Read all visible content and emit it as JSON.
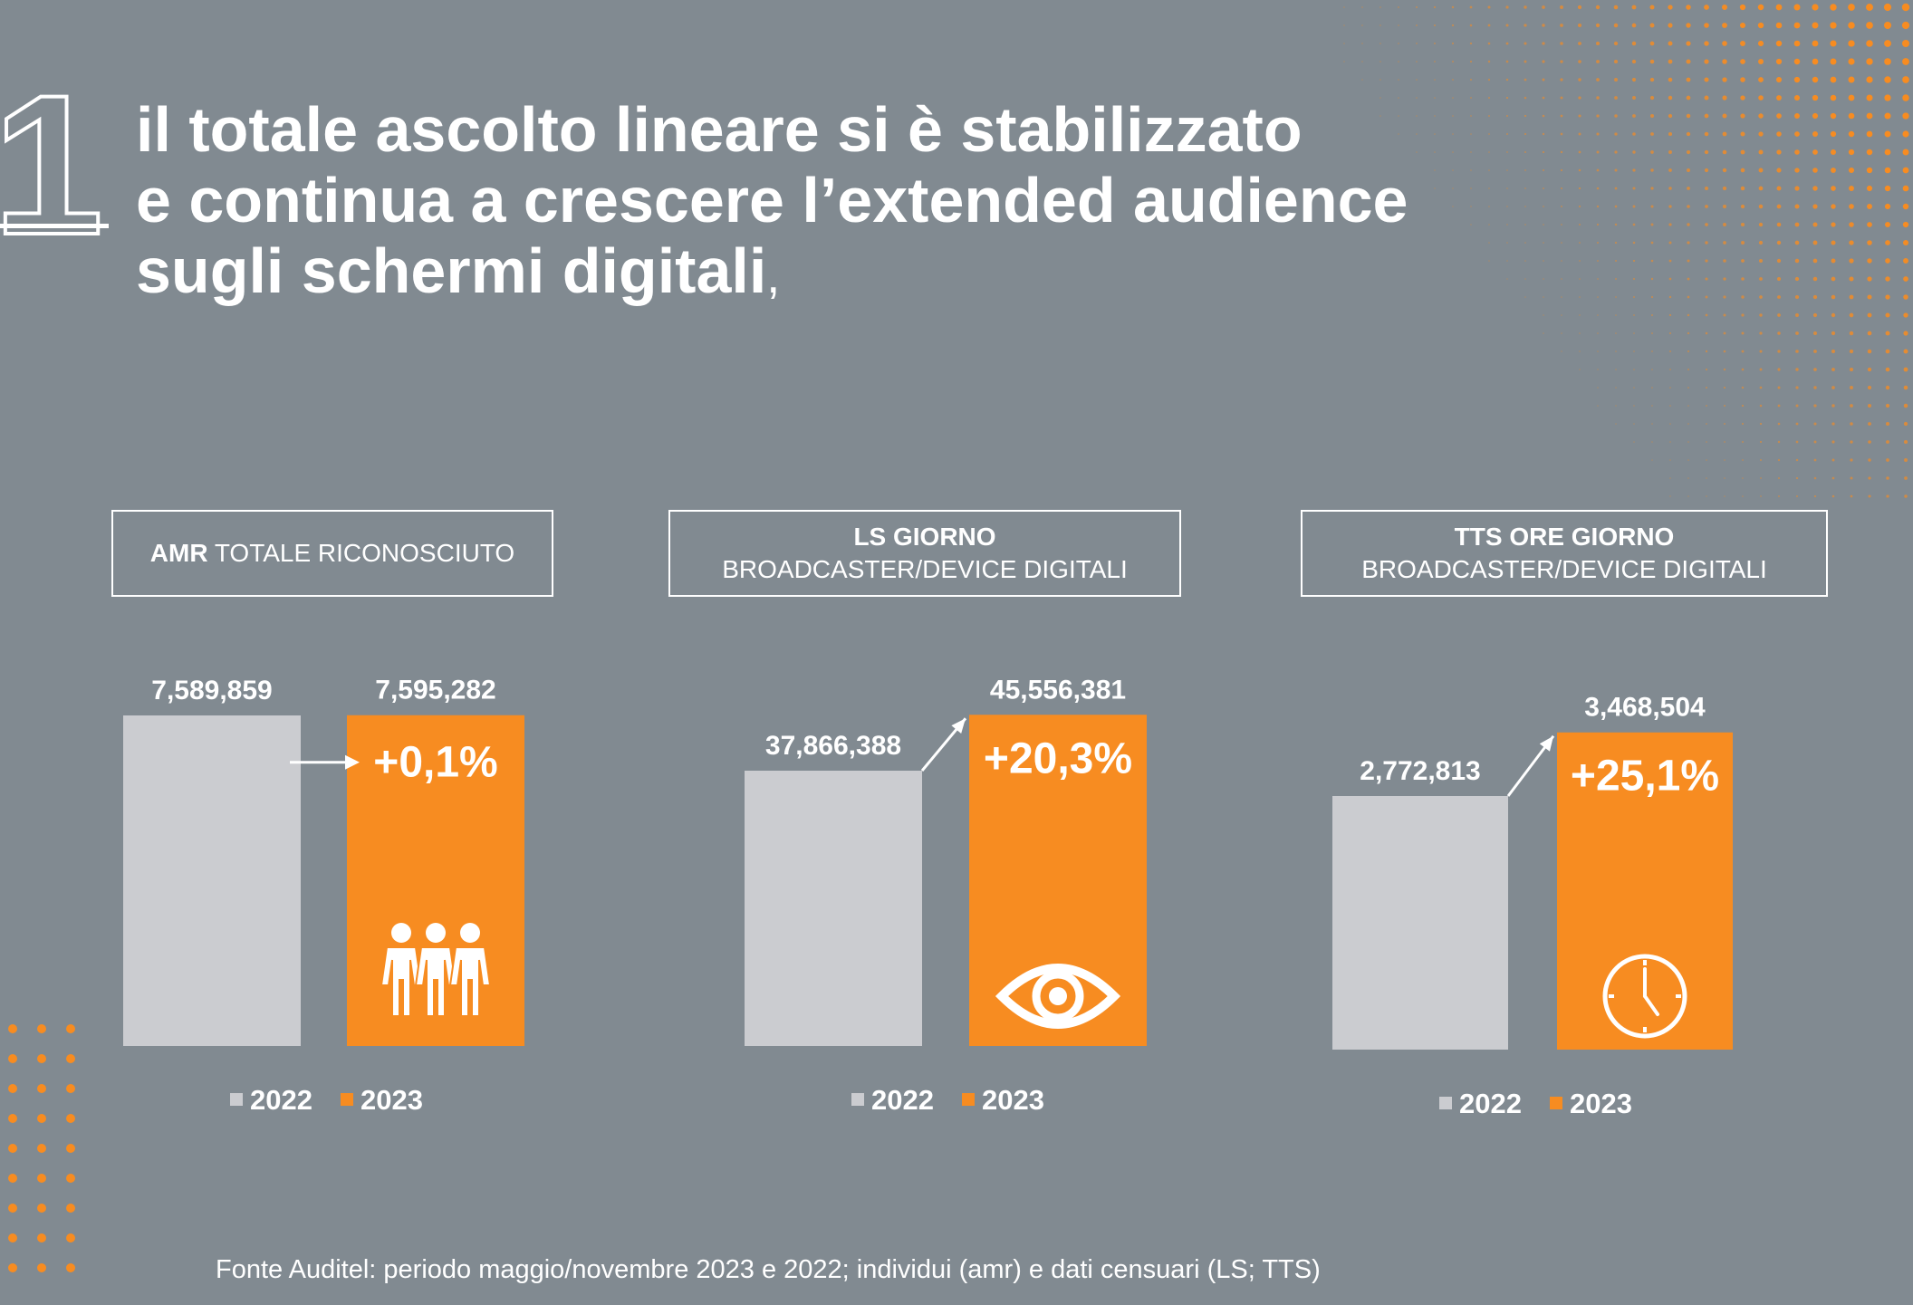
{
  "heading": {
    "number": "1",
    "lines": [
      "il totale ascolto lineare si è stabilizzato",
      "e continua a crescere l’extended audience",
      "sugli schermi digitali"
    ],
    "trailing_comma": ","
  },
  "panels": [
    {
      "label_bold": "AMR",
      "label_rest": " TOTALE RICONOSCIUTO"
    },
    {
      "label_bold": "LS GIORNO",
      "label_rest": "BROADCASTER/DEVICE DIGITALI"
    },
    {
      "label_bold": "TTS ORE GIORNO",
      "label_rest": "BROADCASTER/DEVICE DIGITALI"
    }
  ],
  "chart_data": [
    {
      "type": "bar",
      "title": "AMR TOTALE RICONOSCIUTO",
      "categories": [
        "2022",
        "2023"
      ],
      "values": [
        7589859,
        7595282
      ],
      "value_labels": [
        "7,589,859",
        "7,595,282"
      ],
      "change_label": "+0,1%",
      "icon": "people-icon",
      "legend": [
        "2022",
        "2023"
      ],
      "legend_position": "bottom",
      "grid": false
    },
    {
      "type": "bar",
      "title": "LS GIORNO BROADCASTER/DEVICE DIGITALI",
      "categories": [
        "2022",
        "2023"
      ],
      "values": [
        37866388,
        45556381
      ],
      "value_labels": [
        "37,866,388",
        "45,556,381"
      ],
      "change_label": "+20,3%",
      "icon": "eye-icon",
      "legend": [
        "2022",
        "2023"
      ],
      "legend_position": "bottom",
      "grid": false
    },
    {
      "type": "bar",
      "title": "TTS ORE GIORNO BROADCASTER/DEVICE DIGITALI",
      "categories": [
        "2022",
        "2023"
      ],
      "values": [
        2772813,
        3468504
      ],
      "value_labels": [
        "2,772,813",
        "3,468,504"
      ],
      "change_label": "+25,1%",
      "icon": "clock-icon",
      "legend": [
        "2022",
        "2023"
      ],
      "legend_position": "bottom",
      "grid": false
    }
  ],
  "colors": {
    "background": "#818a91",
    "bar_2022": "#cbccd0",
    "bar_2023": "#f78c21",
    "text": "#ffffff",
    "dots": "#f78c21"
  },
  "source": "Fonte Auditel: periodo maggio/novembre 2023 e 2022; individui (amr) e dati censuari (LS; TTS)"
}
